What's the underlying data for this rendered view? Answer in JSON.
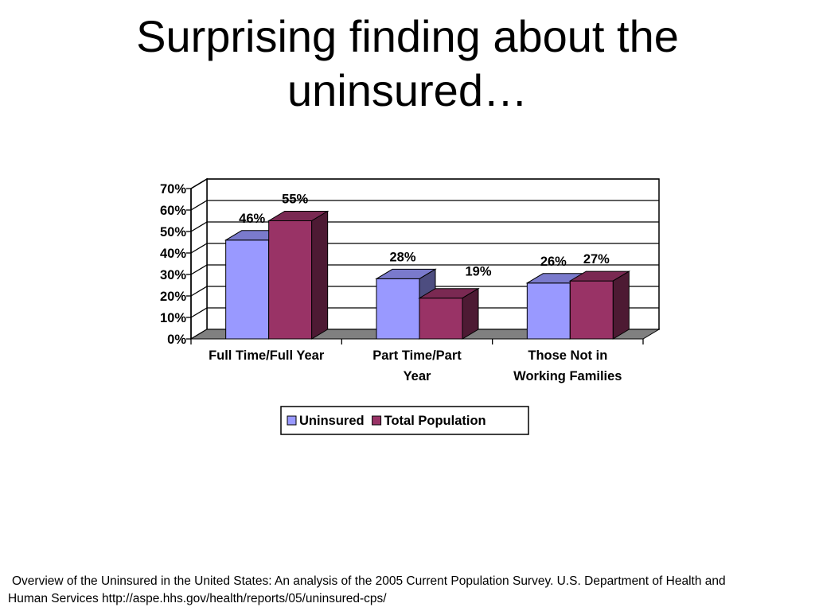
{
  "slide": {
    "title_lines": [
      "Surprising finding about the",
      "uninsured…"
    ]
  },
  "source": {
    "lines": [
      "Overview of the Uninsured in the United States: An analysis of the 2005 Current Population Survey. U.S. Department of Health and",
      "Human Services http://aspe.hhs.gov/health/reports/05/uninsured-cps/"
    ]
  },
  "colors": {
    "uninsured": "#9999ff",
    "total_population": "#993366",
    "floor": "#808080",
    "grid": "#000000"
  },
  "chart_data": {
    "type": "bar",
    "title": "",
    "xlabel": "",
    "ylabel": "",
    "categories": [
      [
        "Full Time/Full Year"
      ],
      [
        "Part Time/Part",
        "Year"
      ],
      [
        "Those Not in",
        "Working Families"
      ]
    ],
    "series": [
      {
        "name": "Uninsured",
        "values": [
          46,
          28,
          26
        ],
        "labels": [
          "46%",
          "28%",
          "26%"
        ],
        "color": "#9999ff"
      },
      {
        "name": "Total Population",
        "values": [
          55,
          19,
          27
        ],
        "labels": [
          "55%",
          "19%",
          "27%"
        ],
        "color": "#993366"
      }
    ],
    "ylim": [
      0,
      70
    ],
    "yticks": [
      "0%",
      "10%",
      "20%",
      "30%",
      "40%",
      "50%",
      "60%",
      "70%"
    ],
    "grid": true,
    "style": "3d-clustered-column",
    "legend_position": "bottom"
  }
}
